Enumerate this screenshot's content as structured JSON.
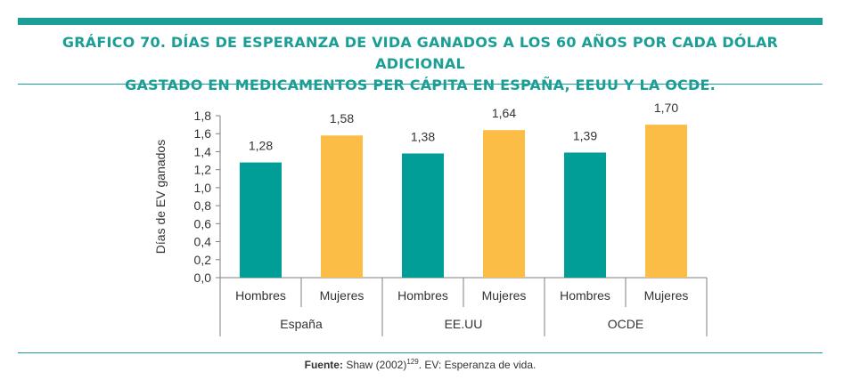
{
  "header": {
    "title_line1": "GRÁFICO 70. DÍAS DE ESPERANZA DE VIDA GANADOS A LOS 60 AÑOS POR CADA DÓLAR ADICIONAL",
    "title_line2": "GASTADO EN MEDICAMENTOS PER CÁPITA EN ESPAÑA, EEUU Y LA OCDE."
  },
  "footer": {
    "source_label": "Fuente:",
    "source_text": "Shaw (2002)",
    "source_ref": "129",
    "source_suffix": ". EV: Esperanza de vida."
  },
  "colors": {
    "accent": "#1b9e96",
    "hombres": "#009e96",
    "mujeres": "#fbbd45"
  },
  "chart_data": {
    "type": "bar",
    "ylabel": "Días de EV ganados",
    "ylim": [
      0,
      1.8
    ],
    "yticks": [
      "0,0",
      "0,2",
      "0,4",
      "0,6",
      "0,8",
      "1,0",
      "1,2",
      "1,4",
      "1,6",
      "1,8"
    ],
    "groups": [
      "España",
      "EE.UU",
      "OCDE"
    ],
    "bars": [
      {
        "group": "España",
        "category": "Hombres",
        "value": 1.28,
        "label": "1,28"
      },
      {
        "group": "España",
        "category": "Mujeres",
        "value": 1.58,
        "label": "1,58"
      },
      {
        "group": "EE.UU",
        "category": "Hombres",
        "value": 1.38,
        "label": "1,38"
      },
      {
        "group": "EE.UU",
        "category": "Mujeres",
        "value": 1.64,
        "label": "1,64"
      },
      {
        "group": "OCDE",
        "category": "Hombres",
        "value": 1.39,
        "label": "1,39"
      },
      {
        "group": "OCDE",
        "category": "Mujeres",
        "value": 1.7,
        "label": "1,70"
      }
    ],
    "grid": false,
    "legend": "none"
  }
}
